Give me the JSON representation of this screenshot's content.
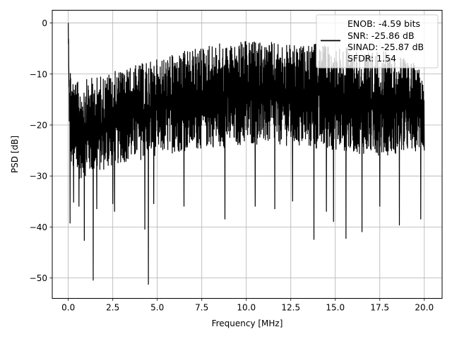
{
  "chart_data": {
    "type": "line",
    "title": "",
    "xlabel": "Frequency [MHz]",
    "ylabel": "PSD [dB]",
    "xlim": [
      -0.9,
      21.0
    ],
    "ylim": [
      -54.0,
      2.5
    ],
    "xticks": [
      0.0,
      2.5,
      5.0,
      7.5,
      10.0,
      12.5,
      15.0,
      17.5,
      20.0
    ],
    "xtick_labels": [
      "0.0",
      "2.5",
      "5.0",
      "7.5",
      "10.0",
      "12.5",
      "15.0",
      "17.5",
      "20.0"
    ],
    "yticks": [
      0,
      -10,
      -20,
      -30,
      -40,
      -50
    ],
    "ytick_labels": [
      "0",
      "−10",
      "−20",
      "−30",
      "−40",
      "−50"
    ],
    "grid": true,
    "legend": {
      "placement": "top-right",
      "entries": [
        "ENOB: -4.59 bits",
        "SNR: -25.86 dB",
        "SINAD: -25.87 dB",
        "SFDR: 1.54"
      ]
    },
    "series": [
      {
        "color": "#000000",
        "envelope": {
          "x": [
            0.0,
            0.05,
            0.15,
            0.3,
            0.5,
            1.0,
            2.0,
            3.0,
            4.0,
            5.0,
            6.0,
            7.0,
            8.0,
            9.0,
            10.0,
            11.0,
            12.0,
            13.0,
            14.0,
            15.0,
            16.0,
            17.0,
            18.0,
            19.0,
            20.0
          ],
          "upper": [
            0.0,
            -6.0,
            -9.0,
            -10.5,
            -11.5,
            -11.0,
            -10.0,
            -9.0,
            -8.0,
            -7.0,
            -6.0,
            -5.0,
            -4.0,
            -4.0,
            -3.5,
            -3.5,
            -4.0,
            -4.5,
            -4.0,
            -4.5,
            -4.5,
            -5.5,
            -5.5,
            -7.0,
            -9.0
          ],
          "lower": [
            -3.0,
            -20.0,
            -28.0,
            -30.0,
            -31.0,
            -30.0,
            -29.0,
            -27.5,
            -27.0,
            -26.0,
            -25.5,
            -25.0,
            -24.5,
            -24.5,
            -24.0,
            -24.0,
            -24.0,
            -24.5,
            -25.0,
            -25.0,
            -25.5,
            -26.0,
            -26.0,
            -25.5,
            -25.0
          ]
        },
        "dips": [
          [
            0.1,
            -39.3
          ],
          [
            0.3,
            -35.2
          ],
          [
            0.6,
            -36.0
          ],
          [
            0.9,
            -42.7
          ],
          [
            1.4,
            -50.5
          ],
          [
            1.6,
            -36.5
          ],
          [
            2.5,
            -35.5
          ],
          [
            2.6,
            -37.0
          ],
          [
            4.3,
            -40.5
          ],
          [
            4.5,
            -51.3
          ],
          [
            4.8,
            -35.5
          ],
          [
            6.5,
            -36.0
          ],
          [
            8.8,
            -38.5
          ],
          [
            10.5,
            -36.0
          ],
          [
            11.6,
            -36.5
          ],
          [
            12.6,
            -35.0
          ],
          [
            13.8,
            -42.5
          ],
          [
            14.5,
            -37.0
          ],
          [
            14.9,
            -39.0
          ],
          [
            15.6,
            -42.3
          ],
          [
            16.5,
            -41.0
          ],
          [
            17.5,
            -36.0
          ],
          [
            18.6,
            -39.7
          ],
          [
            19.8,
            -38.5
          ],
          [
            20.0,
            -25.0
          ]
        ]
      }
    ]
  }
}
